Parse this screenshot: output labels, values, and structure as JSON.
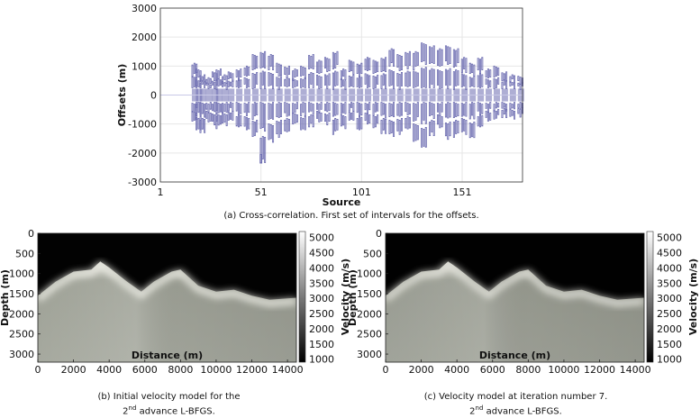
{
  "chart_data": [
    {
      "id": "a",
      "type": "scatter",
      "title": "",
      "xlabel": "Source",
      "ylabel": "Offsets (m)",
      "xlim": [
        1,
        181
      ],
      "ylim": [
        -3000,
        3000
      ],
      "xticks": [
        1,
        51,
        101,
        151
      ],
      "yticks": [
        3000,
        2000,
        1000,
        0,
        -1000,
        -2000,
        -3000
      ],
      "grid": true,
      "color": "#6b6bb0",
      "x": [
        18,
        20,
        22,
        25,
        28,
        30,
        33,
        36,
        40,
        44,
        48,
        52,
        56,
        60,
        64,
        68,
        72,
        76,
        80,
        84,
        88,
        92,
        96,
        100,
        104,
        108,
        112,
        116,
        120,
        124,
        128,
        132,
        136,
        140,
        144,
        148,
        152,
        156,
        160,
        164,
        168,
        172,
        176,
        180
      ],
      "y_upper": [
        1100,
        900,
        700,
        600,
        800,
        900,
        700,
        800,
        900,
        1000,
        1400,
        1500,
        1400,
        1100,
        1000,
        900,
        1000,
        1400,
        1200,
        1300,
        1500,
        900,
        1200,
        1100,
        1300,
        1200,
        1300,
        1600,
        1400,
        1500,
        1500,
        1800,
        1700,
        1600,
        1700,
        1600,
        1300,
        1100,
        1300,
        900,
        1000,
        800,
        700,
        650
      ],
      "y_lower": [
        -900,
        -1200,
        -1300,
        -900,
        -1000,
        -1100,
        -1000,
        -900,
        -1100,
        -1200,
        -1400,
        -2300,
        -1600,
        -1400,
        -1300,
        -1000,
        -1200,
        -1100,
        -900,
        -1000,
        -1300,
        -1100,
        -900,
        -1200,
        -1000,
        -1100,
        -1300,
        -1400,
        -1300,
        -1200,
        -1600,
        -1800,
        -1400,
        -1100,
        -1500,
        -1400,
        -1300,
        -1500,
        -1100,
        -900,
        -800,
        -750,
        -800,
        -700
      ]
    },
    {
      "id": "b",
      "type": "heatmap",
      "xlabel": "Distance (m)",
      "ylabel": "Depth (m)",
      "colorbar_label": "Velocity (m/s)",
      "xlim": [
        0,
        14500
      ],
      "ylim": [
        0,
        3200
      ],
      "xticks": [
        0,
        2000,
        4000,
        6000,
        8000,
        10000,
        12000,
        14000
      ],
      "yticks": [
        0,
        500,
        1000,
        1500,
        2000,
        2500,
        3000
      ],
      "cbar_range": [
        900,
        5200
      ],
      "cbar_ticks": [
        5000,
        4500,
        4000,
        3500,
        3000,
        2500,
        2000,
        1500,
        1000
      ],
      "interface_x": [
        0,
        1000,
        2000,
        3000,
        3500,
        4000,
        5000,
        5800,
        6500,
        7500,
        8000,
        9000,
        10000,
        11000,
        12000,
        13000,
        14500
      ],
      "interface_depth": [
        1550,
        1200,
        950,
        900,
        700,
        850,
        1200,
        1450,
        1200,
        950,
        900,
        1300,
        1450,
        1400,
        1550,
        1650,
        1600
      ]
    },
    {
      "id": "c",
      "type": "heatmap",
      "xlabel": "Distance (m)",
      "ylabel": "Depth (m)",
      "colorbar_label": "Velocity (m/s)",
      "xlim": [
        0,
        14500
      ],
      "ylim": [
        0,
        3200
      ],
      "xticks": [
        0,
        2000,
        4000,
        6000,
        8000,
        10000,
        12000,
        14000
      ],
      "yticks": [
        0,
        500,
        1000,
        1500,
        2000,
        2500,
        3000
      ],
      "cbar_range": [
        900,
        5200
      ],
      "cbar_ticks": [
        5000,
        4500,
        4000,
        3500,
        3000,
        2500,
        2000,
        1500,
        1000
      ],
      "interface_x": [
        0,
        1000,
        2000,
        3000,
        3500,
        4000,
        5000,
        5800,
        6500,
        7500,
        8000,
        9000,
        10000,
        11000,
        12000,
        13000,
        14500
      ],
      "interface_depth": [
        1550,
        1200,
        950,
        900,
        700,
        850,
        1200,
        1450,
        1200,
        950,
        900,
        1300,
        1450,
        1400,
        1550,
        1650,
        1600
      ]
    }
  ],
  "captions": {
    "a": "(a) Cross-correlation. First set of intervals for the offsets.",
    "b_line1": "(b) Initial velocity model for the",
    "b_line2_num": "2",
    "b_line2_sup": "nd",
    "b_line2_rest": " advance L-BFGS.",
    "c_line1": "(c) Velocity model at iteration number 7.",
    "c_line2_num": "2",
    "c_line2_sup": "nd",
    "c_line2_rest": " advance L-BFGS."
  }
}
